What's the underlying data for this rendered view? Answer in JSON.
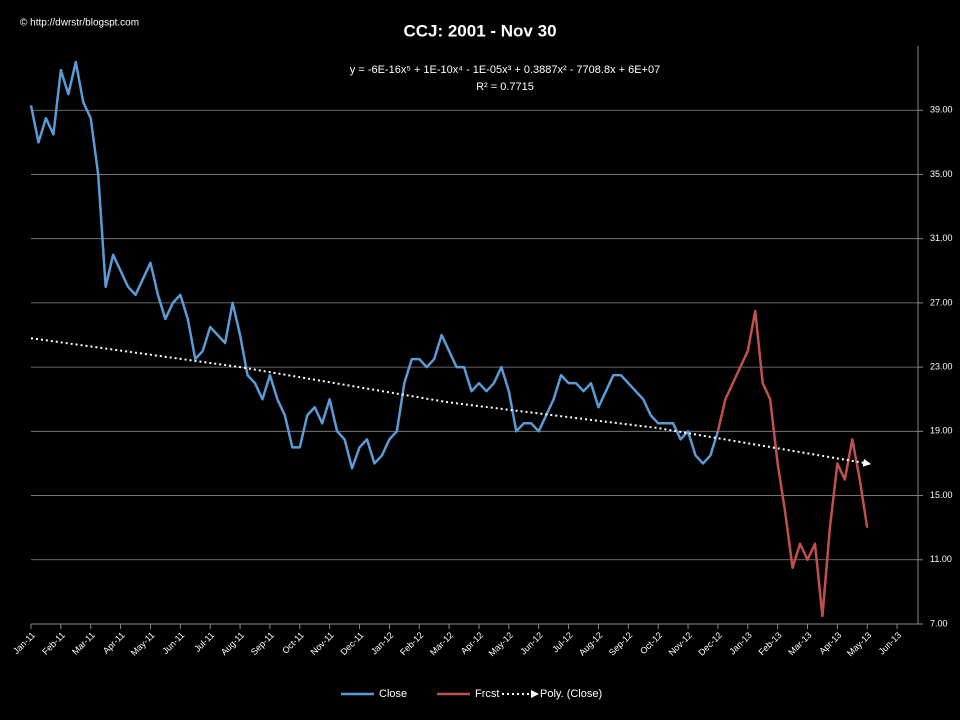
{
  "chart_data": {
    "type": "line",
    "title": "CCJ: 2001 - Nov 30",
    "credit": "© http://dwrstr/blogspt.com",
    "annotations": [
      "y = -6E-16x⁵ + 1E-10x⁴ - 1E-05x³ + 0.3887x² - 7708.8x + 6E+07",
      "R² = 0.7715"
    ],
    "xlim": [
      0,
      29.7
    ],
    "xticks": [
      {
        "value": 0,
        "label": "Jan-11"
      },
      {
        "value": 1,
        "label": "Feb-11"
      },
      {
        "value": 2,
        "label": "Mar-11"
      },
      {
        "value": 3,
        "label": "Apr-11"
      },
      {
        "value": 4,
        "label": "May-11"
      },
      {
        "value": 5,
        "label": "Jun-11"
      },
      {
        "value": 6,
        "label": "Jul-11"
      },
      {
        "value": 7,
        "label": "Aug-11"
      },
      {
        "value": 8,
        "label": "Sep-11"
      },
      {
        "value": 9,
        "label": "Oct-11"
      },
      {
        "value": 10,
        "label": "Nov-11"
      },
      {
        "value": 11,
        "label": "Dec-11"
      },
      {
        "value": 12,
        "label": "Jan-12"
      },
      {
        "value": 13,
        "label": "Feb-12"
      },
      {
        "value": 14,
        "label": "Mar-12"
      },
      {
        "value": 15,
        "label": "Apr-12"
      },
      {
        "value": 16,
        "label": "May-12"
      },
      {
        "value": 17,
        "label": "Jun-12"
      },
      {
        "value": 18,
        "label": "Jul-12"
      },
      {
        "value": 19,
        "label": "Aug-12"
      },
      {
        "value": 20,
        "label": "Sep-12"
      },
      {
        "value": 21,
        "label": "Oct-12"
      },
      {
        "value": 22,
        "label": "Nov-12"
      },
      {
        "value": 23,
        "label": "Dec-12"
      },
      {
        "value": 24,
        "label": "Jan-13"
      },
      {
        "value": 25,
        "label": "Feb-13"
      },
      {
        "value": 26,
        "label": "Mar-13"
      },
      {
        "value": 27,
        "label": "Apr-13"
      },
      {
        "value": 28,
        "label": "May-13"
      },
      {
        "value": 29,
        "label": "Jun-13"
      }
    ],
    "ylim": [
      7,
      43
    ],
    "yticks": [
      {
        "value": 7,
        "label": "7.00"
      },
      {
        "value": 11,
        "label": "11.00"
      },
      {
        "value": 15,
        "label": "15.00"
      },
      {
        "value": 19,
        "label": "19.00"
      },
      {
        "value": 23,
        "label": "23.00"
      },
      {
        "value": 27,
        "label": "27.00"
      },
      {
        "value": 31,
        "label": "31.00"
      },
      {
        "value": 35,
        "label": "35.00"
      },
      {
        "value": 39,
        "label": "39.00"
      }
    ],
    "grid": true,
    "legend": "bottom",
    "series": [
      {
        "name": "Close",
        "color": "#5b9bd5",
        "line_style": "solid",
        "x": [
          0,
          0.25,
          0.5,
          0.75,
          1,
          1.25,
          1.5,
          1.75,
          2,
          2.25,
          2.5,
          2.75,
          3,
          3.25,
          3.5,
          3.75,
          4,
          4.25,
          4.5,
          4.75,
          5,
          5.25,
          5.5,
          5.75,
          6,
          6.25,
          6.5,
          6.75,
          7,
          7.25,
          7.5,
          7.75,
          8,
          8.25,
          8.5,
          8.75,
          9,
          9.25,
          9.5,
          9.75,
          10,
          10.25,
          10.5,
          10.75,
          11,
          11.25,
          11.5,
          11.75,
          12,
          12.25,
          12.5,
          12.75,
          13,
          13.25,
          13.5,
          13.75,
          14,
          14.25,
          14.5,
          14.75,
          15,
          15.25,
          15.5,
          15.75,
          16,
          16.25,
          16.5,
          16.75,
          17,
          17.25,
          17.5,
          17.75,
          18,
          18.25,
          18.5,
          18.75,
          19,
          19.25,
          19.5,
          19.75,
          20,
          20.25,
          20.5,
          20.75,
          21,
          21.25,
          21.5,
          21.75,
          22,
          22.25,
          22.5,
          22.75,
          23
        ],
        "values": [
          39.3,
          37,
          38.5,
          37.5,
          41.5,
          40,
          42,
          39.5,
          38.5,
          35,
          28,
          30,
          29,
          28,
          27.5,
          28.5,
          29.5,
          27.5,
          26,
          27,
          27.5,
          26,
          23.5,
          24,
          25.5,
          25,
          24.5,
          27,
          25,
          22.5,
          22,
          21,
          22.5,
          21,
          20,
          18,
          18,
          20,
          20.5,
          19.5,
          21,
          19,
          18.5,
          16.7,
          18,
          18.5,
          17,
          17.5,
          18.5,
          19,
          22,
          23.5,
          23.5,
          23,
          23.5,
          25,
          24,
          23,
          23,
          21.5,
          22,
          21.5,
          22,
          23,
          21.5,
          19,
          19.5,
          19.5,
          19,
          20,
          21,
          22.5,
          22,
          22,
          21.5,
          22,
          20.5,
          21.5,
          22.5,
          22.5,
          22,
          21.5,
          21,
          20,
          19.5,
          19.5,
          19.5,
          18.5,
          19,
          17.5,
          17,
          17.5,
          19
        ]
      },
      {
        "name": "Frcst",
        "color": "#c0504d",
        "line_style": "solid",
        "x": [
          23,
          23.25,
          23.5,
          23.75,
          24,
          24.25,
          24.5,
          24.75,
          25,
          25.25,
          25.5,
          25.75,
          26,
          26.25,
          26.5,
          26.75,
          27,
          27.25,
          27.5,
          27.75,
          28
        ],
        "values": [
          19,
          21,
          22,
          23,
          24,
          26.5,
          22,
          21,
          17,
          14,
          10.5,
          12,
          11,
          12,
          7.5,
          13,
          17,
          16,
          18.5,
          16,
          13
        ]
      },
      {
        "name": "Poly. (Close)",
        "color": "#ffffff",
        "line_style": "dotted",
        "x": [
          0,
          7,
          14,
          21,
          28
        ],
        "values": [
          24.8,
          23,
          20.8,
          19.2,
          17
        ]
      }
    ]
  }
}
